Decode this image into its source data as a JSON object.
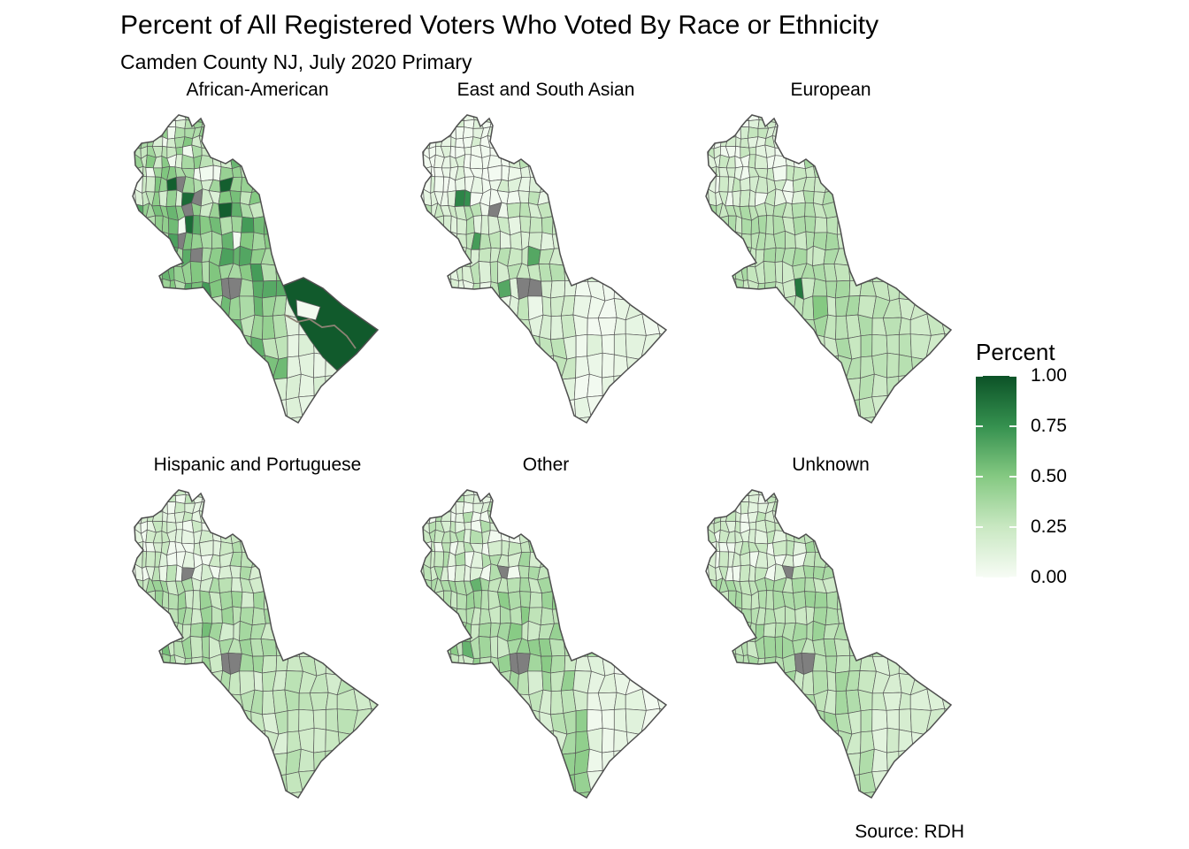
{
  "title": "Percent of All Registered Voters Who Voted By Race or Ethnicity",
  "subtitle": "Camden County NJ, July 2020 Primary",
  "caption": "Source: RDH",
  "legend": {
    "title": "Percent",
    "ticks": [
      "1.00",
      "0.75",
      "0.50",
      "0.25",
      "0.00"
    ]
  },
  "chart_data": {
    "type": "choropleth",
    "title": "Percent of All Registered Voters Who Voted By Race or Ethnicity",
    "subtitle": "Camden County NJ, July 2020 Primary",
    "caption": "Source: RDH",
    "region": "Camden County NJ voting precincts",
    "layout": {
      "rows": 2,
      "cols": 3,
      "legend_position": "right"
    },
    "scale": {
      "title": "Percent",
      "domain": [
        0,
        1
      ],
      "breaks": [
        0,
        0.25,
        0.5,
        0.75,
        1
      ],
      "labels": [
        "0.00",
        "0.25",
        "0.50",
        "0.75",
        "1.00"
      ],
      "stops": [
        [
          0,
          "#F7FCF5"
        ],
        [
          0.25,
          "#C9E8C2"
        ],
        [
          0.5,
          "#85C982"
        ],
        [
          0.75,
          "#35914F"
        ],
        [
          1,
          "#0C5227"
        ]
      ],
      "na_color": "#7F7F7F"
    },
    "style": {
      "cell_stroke": "#585858",
      "outline_stroke": "#4F4F4F",
      "background": "#FFFFFF",
      "text_color": "#000000"
    },
    "facets": [
      {
        "label": "African-American",
        "estimated_mean": 0.45,
        "params": {
          "base": 0.42,
          "noise": 0.2,
          "tl": 0.08,
          "pocket": 0.22,
          "mid": 0.1,
          "tail_base": 0.13,
          "tail_right": 0,
          "tail_band": null
        },
        "specials": [
          {
            "x": 0.4,
            "y": 0.54,
            "v": "na"
          },
          {
            "x": 0.42,
            "y": 0.56,
            "v": "na"
          },
          {
            "x": 0.225,
            "y": 0.265,
            "v": "na"
          },
          {
            "x": 0.27,
            "y": 0.3,
            "v": "na"
          },
          {
            "x": 0.235,
            "y": 0.33,
            "v": "na"
          },
          {
            "x": 0.22,
            "y": 0.42,
            "v": "na"
          },
          {
            "x": 0.275,
            "y": 0.46,
            "v": "na"
          },
          {
            "x": 0.18,
            "y": 0.24,
            "v": 0.95
          },
          {
            "x": 0.37,
            "y": 0.25,
            "v": 0.95
          },
          {
            "x": 0.4,
            "y": 0.315,
            "v": 0.95
          },
          {
            "x": 0.23,
            "y": 0.276,
            "v": 0.9
          },
          {
            "x": 0.24,
            "y": 0.35,
            "v": 0.9
          },
          {
            "x": 0.41,
            "y": 0.42,
            "v": 0.02
          },
          {
            "x": 0.335,
            "y": 0.225,
            "v": 0.03
          },
          {
            "x": 0.21,
            "y": 0.35,
            "v": 0.03
          }
        ],
        "overlays": [
          {
            "type": "polygon",
            "points": [
              [
                184,
                205
              ],
              [
                207,
                196
              ],
              [
                229,
                208
              ],
              [
                251,
                227
              ],
              [
                291,
                255
              ],
              [
                263,
                286
              ],
              [
                245,
                301
              ],
              [
                229,
                286
              ],
              [
                215,
                267
              ],
              [
                202,
                247
              ],
              [
                191,
                226
              ]
            ],
            "value": 0.97
          },
          {
            "type": "polygon",
            "points": [
              [
                199,
                221
              ],
              [
                226,
                229
              ],
              [
                221,
                244
              ],
              [
                200,
                239
              ]
            ],
            "color": "#F2FAEF"
          },
          {
            "type": "line",
            "points": [
              [
                186,
                238
              ],
              [
                200,
                246
              ],
              [
                214,
                243
              ],
              [
                228,
                252
              ],
              [
                242,
                250
              ],
              [
                256,
                262
              ],
              [
                266,
                276
              ]
            ],
            "color": "#8C8274",
            "width": 1.8
          }
        ]
      },
      {
        "label": "East and South Asian",
        "estimated_mean": 0.2,
        "params": {
          "base": 0.18,
          "noise": 0.13,
          "tl": 0.1,
          "pocket": 0.3,
          "mid": 0.02,
          "tail_base": 0.07,
          "tail_right": 0,
          "tail_band": null
        },
        "specials": [
          {
            "x": 0.31,
            "y": 0.32,
            "v": "na"
          },
          {
            "x": 0.42,
            "y": 0.54,
            "v": "na"
          },
          {
            "x": 0.44,
            "y": 0.56,
            "v": "na"
          },
          {
            "x": 0.19,
            "y": 0.3,
            "v": 0.8
          },
          {
            "x": 0.21,
            "y": 0.3,
            "v": 0.75
          },
          {
            "x": 0.25,
            "y": 0.43,
            "v": 0.7
          },
          {
            "x": 0.45,
            "y": 0.46,
            "v": 0.65
          },
          {
            "x": 0.28,
            "y": 0.61,
            "v": 0.65
          }
        ],
        "overlays": []
      },
      {
        "label": "European",
        "estimated_mean": 0.3,
        "params": {
          "base": 0.3,
          "noise": 0.09,
          "tl": 0.12,
          "pocket": 0.3,
          "mid": 0,
          "tail_base": 0.3,
          "tail_right": -0.03,
          "tail_band": null
        },
        "specials": [
          {
            "x": 0.4,
            "y": 0.54,
            "v": 0.85
          },
          {
            "x": 0.44,
            "y": 0.61,
            "v": 0.5
          }
        ],
        "overlays": []
      },
      {
        "label": "Hispanic and Portuguese",
        "estimated_mean": 0.27,
        "params": {
          "base": 0.26,
          "noise": 0.12,
          "tl": 0.08,
          "pocket": 0.2,
          "mid": 0.04,
          "tail_base": 0.28,
          "tail_right": -0.03,
          "tail_band": null
        },
        "specials": [
          {
            "x": 0.25,
            "y": 0.3,
            "v": "na"
          },
          {
            "x": 0.4,
            "y": 0.55,
            "v": "na"
          },
          {
            "x": 0.42,
            "y": 0.57,
            "v": "na"
          },
          {
            "x": 0.13,
            "y": 0.52,
            "v": 0.55
          },
          {
            "x": 0.3,
            "y": 0.47,
            "v": 0.55
          }
        ],
        "overlays": []
      },
      {
        "label": "Other",
        "estimated_mean": 0.3,
        "params": {
          "base": 0.3,
          "noise": 0.14,
          "tl": 0.08,
          "pocket": 0.2,
          "mid": 0.05,
          "tail_base": 0.16,
          "tail_right": -0.08,
          "tail_band": 0.46
        },
        "specials": [
          {
            "x": 0.36,
            "y": 0.3,
            "v": "na"
          },
          {
            "x": 0.4,
            "y": 0.55,
            "v": "na"
          },
          {
            "x": 0.42,
            "y": 0.57,
            "v": "na"
          },
          {
            "x": 0.25,
            "y": 0.33,
            "v": 0.6
          },
          {
            "x": 0.22,
            "y": 0.55,
            "v": 0.6
          }
        ],
        "overlays": []
      },
      {
        "label": "Unknown",
        "estimated_mean": 0.3,
        "params": {
          "base": 0.3,
          "noise": 0.1,
          "tl": 0.1,
          "pocket": 0.18,
          "mid": 0.02,
          "tail_base": 0.29,
          "tail_right": -0.12,
          "tail_band": null
        },
        "specials": [
          {
            "x": 0.36,
            "y": 0.3,
            "v": "na"
          },
          {
            "x": 0.4,
            "y": 0.55,
            "v": "na"
          },
          {
            "x": 0.42,
            "y": 0.56,
            "v": "na"
          }
        ],
        "overlays": []
      }
    ],
    "geometry": {
      "outline": [
        [
          66,
          12
        ],
        [
          77,
          15
        ],
        [
          81,
          25
        ],
        [
          91,
          16
        ],
        [
          95,
          24
        ],
        [
          92,
          42
        ],
        [
          102,
          60
        ],
        [
          119,
          67
        ],
        [
          127,
          62
        ],
        [
          137,
          70
        ],
        [
          144,
          89
        ],
        [
          157,
          102
        ],
        [
          162,
          125
        ],
        [
          166,
          142
        ],
        [
          171,
          169
        ],
        [
          177,
          189
        ],
        [
          184,
          205
        ],
        [
          207,
          196
        ],
        [
          229,
          208
        ],
        [
          251,
          227
        ],
        [
          291,
          255
        ],
        [
          267,
          282
        ],
        [
          247,
          300
        ],
        [
          227,
          319
        ],
        [
          214,
          339
        ],
        [
          201,
          360
        ],
        [
          187,
          352
        ],
        [
          181,
          332
        ],
        [
          174,
          312
        ],
        [
          167,
          292
        ],
        [
          154,
          280
        ],
        [
          144,
          270
        ],
        [
          136,
          255
        ],
        [
          126,
          244
        ],
        [
          114,
          230
        ],
        [
          104,
          220
        ],
        [
          94,
          207
        ],
        [
          74,
          209
        ],
        [
          49,
          207
        ],
        [
          44,
          194
        ],
        [
          57,
          185
        ],
        [
          71,
          179
        ],
        [
          62,
          165
        ],
        [
          56,
          152
        ],
        [
          44,
          142
        ],
        [
          34,
          132
        ],
        [
          21,
          120
        ],
        [
          14,
          104
        ],
        [
          19,
          89
        ],
        [
          26,
          80
        ],
        [
          17,
          69
        ],
        [
          16,
          54
        ],
        [
          24,
          44
        ],
        [
          37,
          42
        ],
        [
          47,
          35
        ],
        [
          54,
          25
        ],
        [
          59,
          19
        ]
      ]
    }
  }
}
